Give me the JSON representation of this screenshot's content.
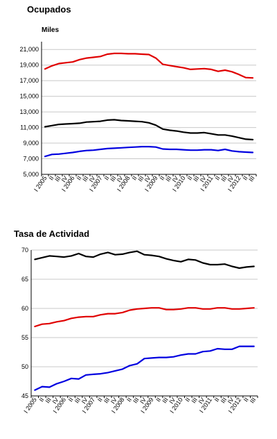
{
  "chart_data": [
    {
      "type": "line",
      "title": "Ocupados",
      "unit_label": "Miles",
      "ylim": [
        5000,
        22000
      ],
      "yticks": [
        "5,000",
        "7,000",
        "9,000",
        "11,000",
        "13,000",
        "15,000",
        "17,000",
        "19,000",
        "21,000"
      ],
      "ytick_values": [
        5000,
        7000,
        9000,
        11000,
        13000,
        15000,
        17000,
        19000,
        21000
      ],
      "grid": true,
      "x_labels": [
        "I 2005",
        "II",
        "III",
        "IV",
        "I 2006",
        "II",
        "III",
        "IV",
        "I 2007",
        "II",
        "III",
        "IV",
        "I 2008",
        "II",
        "III",
        "IV",
        "I 2009",
        "II",
        "III",
        "IV",
        "I 2010",
        "II",
        "III",
        "IV",
        "I 2011",
        "II",
        "III",
        "IV",
        "I 2012",
        "II",
        "III"
      ],
      "series": [
        {
          "color": "#e00000",
          "values": [
            18500,
            18900,
            19200,
            19300,
            19400,
            19700,
            19900,
            20000,
            20100,
            20400,
            20500,
            20500,
            20450,
            20450,
            20400,
            20350,
            19900,
            19100,
            18950,
            18800,
            18650,
            18450,
            18500,
            18550,
            18450,
            18200,
            18350,
            18150,
            17800,
            17400,
            17350
          ]
        },
        {
          "color": "#000000",
          "values": [
            11100,
            11250,
            11400,
            11450,
            11500,
            11550,
            11700,
            11750,
            11800,
            11950,
            12000,
            11900,
            11850,
            11800,
            11750,
            11600,
            11300,
            10800,
            10650,
            10550,
            10400,
            10300,
            10300,
            10350,
            10200,
            10050,
            10050,
            9900,
            9700,
            9500,
            9450
          ]
        },
        {
          "color": "#0000e0",
          "values": [
            7300,
            7550,
            7600,
            7700,
            7800,
            7950,
            8050,
            8100,
            8200,
            8300,
            8350,
            8400,
            8450,
            8500,
            8550,
            8550,
            8500,
            8250,
            8200,
            8200,
            8150,
            8100,
            8100,
            8150,
            8150,
            8050,
            8200,
            8000,
            7900,
            7850,
            7800
          ]
        }
      ]
    },
    {
      "type": "line",
      "title": "Tasa de Actividad",
      "ylim": [
        45,
        70
      ],
      "yticks": [
        "45",
        "50",
        "55",
        "60",
        "65",
        "70"
      ],
      "ytick_values": [
        45,
        50,
        55,
        60,
        65,
        70
      ],
      "grid": true,
      "x_labels": [
        "I 2005",
        "II",
        "III",
        "IV",
        "I 2006",
        "II",
        "III",
        "IV",
        "I 2007",
        "II",
        "III",
        "IV",
        "I 2008",
        "II",
        "III",
        "IV",
        "I 2009",
        "II",
        "III",
        "IV",
        "I 2010",
        "II",
        "III",
        "IV",
        "I 2011",
        "II",
        "III",
        "IV",
        "I 2012",
        "II",
        "III"
      ],
      "series": [
        {
          "color": "#000000",
          "values": [
            68.4,
            68.7,
            69.0,
            68.9,
            68.8,
            69.0,
            69.4,
            68.9,
            68.8,
            69.3,
            69.6,
            69.2,
            69.3,
            69.6,
            69.8,
            69.2,
            69.1,
            68.9,
            68.5,
            68.2,
            68.0,
            68.4,
            68.3,
            67.8,
            67.5,
            67.5,
            67.6,
            67.2,
            66.9,
            67.1,
            67.2
          ]
        },
        {
          "color": "#e00000",
          "values": [
            56.9,
            57.3,
            57.4,
            57.7,
            57.9,
            58.3,
            58.5,
            58.6,
            58.6,
            58.9,
            59.1,
            59.1,
            59.3,
            59.7,
            59.9,
            60.0,
            60.1,
            60.1,
            59.8,
            59.8,
            59.9,
            60.1,
            60.1,
            59.9,
            59.9,
            60.1,
            60.1,
            59.9,
            59.9,
            60.0,
            60.1
          ]
        },
        {
          "color": "#0000e0",
          "values": [
            46.0,
            46.6,
            46.5,
            47.1,
            47.5,
            48.0,
            47.9,
            48.6,
            48.7,
            48.8,
            49.0,
            49.3,
            49.6,
            50.2,
            50.5,
            51.4,
            51.5,
            51.6,
            51.6,
            51.7,
            52.0,
            52.2,
            52.2,
            52.6,
            52.7,
            53.1,
            53.0,
            53.0,
            53.5,
            53.5,
            53.5
          ]
        }
      ]
    }
  ]
}
